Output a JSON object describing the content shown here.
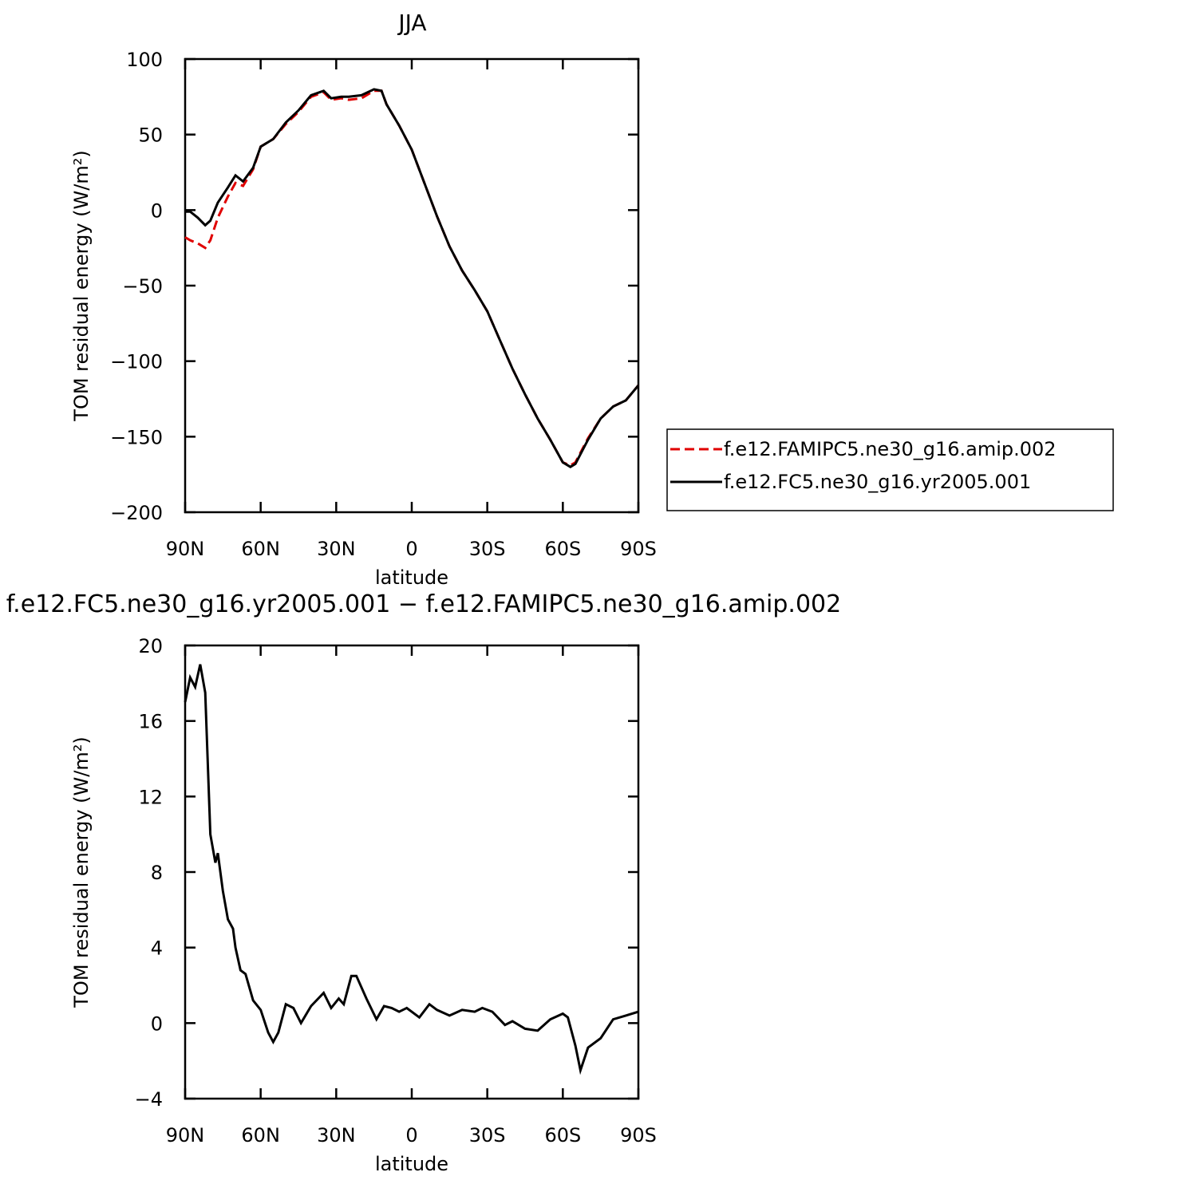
{
  "chart_data": [
    {
      "type": "line",
      "title": "JJA",
      "xlabel": "latitude",
      "ylabel": "TOM residual energy (W/m²)",
      "x": [
        90,
        88,
        85,
        82,
        80,
        77,
        73,
        70,
        67,
        63,
        60,
        55,
        50,
        45,
        40,
        35,
        32,
        28,
        25,
        20,
        15,
        12,
        10,
        5,
        0,
        -5,
        -10,
        -15,
        -20,
        -25,
        -30,
        -35,
        -40,
        -45,
        -50,
        -55,
        -60,
        -63,
        -65,
        -70,
        -75,
        -80,
        -85,
        -90
      ],
      "xlim": [
        90,
        -90
      ],
      "xticks": [
        {
          "value": 90,
          "label": "90N"
        },
        {
          "value": 60,
          "label": "60N"
        },
        {
          "value": 30,
          "label": "30N"
        },
        0,
        {
          "value": -30,
          "label": "30S"
        },
        {
          "value": -60,
          "label": "60S"
        },
        {
          "value": -90,
          "label": "90S"
        }
      ],
      "ylim": [
        -200,
        100
      ],
      "yticks": [
        100,
        50,
        0,
        {
          "value": -50,
          "label": "−50"
        },
        {
          "value": -100,
          "label": "−100"
        },
        {
          "value": -150,
          "label": "−150"
        },
        {
          "value": -200,
          "label": "−200"
        }
      ],
      "legend": "right",
      "series": [
        {
          "name": "f.e12.FAMIPC5.ne30_g16.amip.002",
          "color": "#e00000",
          "dash": true,
          "values": [
            -18,
            -20,
            -22,
            -25,
            -20,
            -5,
            9,
            18,
            16,
            27,
            42,
            47,
            57,
            65,
            75,
            78,
            73,
            74,
            73,
            74,
            79,
            79,
            70,
            56,
            40,
            18,
            -4,
            -24,
            -40,
            -53,
            -67,
            -86,
            -105,
            -122,
            -138,
            -152,
            -167,
            -169,
            -167,
            -151,
            -138,
            -130,
            -126,
            -116
          ]
        },
        {
          "name": "f.e12.FC5.ne30_g16.yr2005.001",
          "color": "#000000",
          "dash": false,
          "values": [
            -1,
            -1,
            -5,
            -10,
            -7,
            5,
            15,
            23,
            19,
            28,
            42,
            47,
            58,
            66,
            76,
            79,
            74,
            75,
            75,
            76,
            80,
            79,
            70,
            56,
            40,
            18,
            -4,
            -24,
            -40,
            -53,
            -67,
            -86,
            -105,
            -122,
            -138,
            -152,
            -167,
            -170,
            -168,
            -152,
            -138,
            -130,
            -126,
            -116
          ]
        }
      ]
    },
    {
      "type": "line",
      "title": "f.e12.FC5.ne30_g16.yr2005.001 − f.e12.FAMIPC5.ne30_g16.amip.002",
      "xlabel": "latitude",
      "ylabel": "TOM residual energy (W/m²)",
      "x": [
        90,
        88,
        86,
        84,
        82,
        80,
        78,
        77,
        75,
        73,
        71,
        70,
        68,
        66,
        63,
        60,
        57,
        55,
        53,
        50,
        47,
        44,
        40,
        35,
        32,
        29,
        27,
        24,
        22,
        18,
        14,
        11,
        8,
        5,
        2,
        -3,
        -7,
        -10,
        -15,
        -20,
        -25,
        -28,
        -32,
        -37,
        -40,
        -45,
        -50,
        -55,
        -60,
        -62,
        -65,
        -67,
        -70,
        -75,
        -80,
        -85,
        -90
      ],
      "xlim": [
        90,
        -90
      ],
      "xticks": [
        {
          "value": 90,
          "label": "90N"
        },
        {
          "value": 60,
          "label": "60N"
        },
        {
          "value": 30,
          "label": "30N"
        },
        0,
        {
          "value": -30,
          "label": "30S"
        },
        {
          "value": -60,
          "label": "60S"
        },
        {
          "value": -90,
          "label": "90S"
        }
      ],
      "ylim": [
        -4,
        20
      ],
      "yticks": [
        20,
        16,
        12,
        8,
        4,
        0,
        {
          "value": -4,
          "label": "−4"
        }
      ],
      "series": [
        {
          "color": "#000000",
          "dash": false,
          "values": [
            17,
            18.3,
            17.8,
            19,
            17.5,
            10,
            8.5,
            9,
            7,
            5.5,
            5,
            4,
            2.8,
            2.6,
            1.2,
            0.7,
            -0.5,
            -1,
            -0.5,
            1,
            0.8,
            0,
            0.9,
            1.6,
            0.8,
            1.3,
            1,
            2.5,
            2.5,
            1.3,
            0.2,
            0.9,
            0.8,
            0.6,
            0.8,
            0.3,
            1,
            0.7,
            0.4,
            0.7,
            0.6,
            0.8,
            0.6,
            -0.1,
            0.1,
            -0.3,
            -0.4,
            0.2,
            0.5,
            0.3,
            -1.2,
            -2.5,
            -1.3,
            -0.8,
            0.2,
            0.4,
            0.6
          ]
        }
      ]
    }
  ]
}
